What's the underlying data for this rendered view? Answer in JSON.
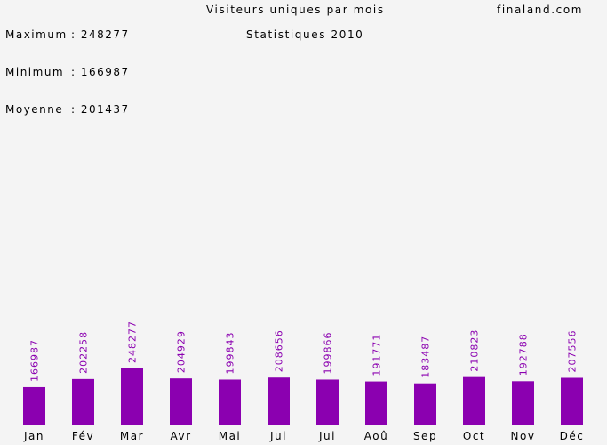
{
  "header": {
    "stats": [
      {
        "label": "Maximum",
        "sep": ":",
        "value": "248277"
      },
      {
        "label": "Minimum",
        "sep": ":",
        "value": "166987"
      },
      {
        "label": "Moyenne",
        "sep": ":",
        "value": "201437"
      }
    ],
    "title": "Visiteurs uniques par mois",
    "subtitle": "Statistiques 2010",
    "site": "finaland.com"
  },
  "chart_data": {
    "type": "bar",
    "title": "Visiteurs uniques par mois",
    "subtitle": "Statistiques 2010",
    "categories": [
      "Jan",
      "Fév",
      "Mar",
      "Avr",
      "Mai",
      "Jui",
      "Jui",
      "Aoû",
      "Sep",
      "Oct",
      "Nov",
      "Déc"
    ],
    "values": [
      166987,
      202258,
      248277,
      204929,
      199843,
      208656,
      199866,
      191771,
      183487,
      210823,
      192788,
      207556
    ],
    "colors": {
      "bar": "#8b00b0",
      "label": "#8b00b0",
      "text": "#000000",
      "background": "#f4f4f4"
    }
  }
}
